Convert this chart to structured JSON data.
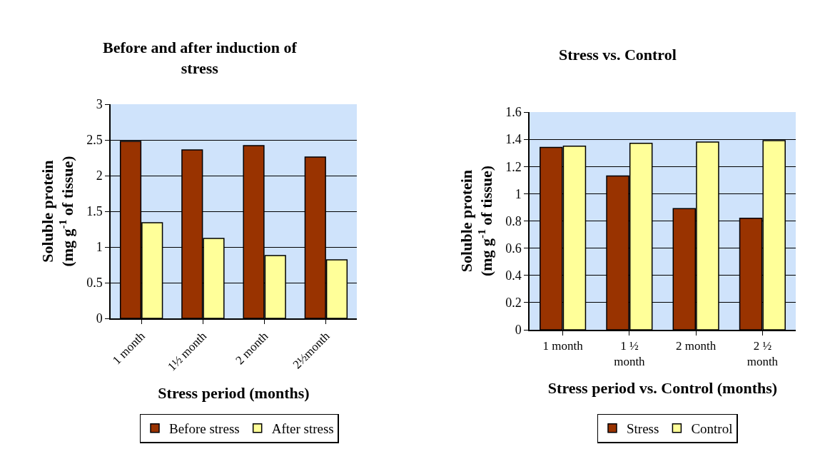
{
  "chart_data": [
    {
      "type": "bar",
      "title": "Before and after induction of\nstress",
      "xlabel": "Stress period (months)",
      "ylabel": "Soluble protein\n(mg g$^{-1}$ of tissue)",
      "categories": [
        "1 month",
        "1½ month",
        "2 month",
        "2½month"
      ],
      "series": [
        {
          "name": "Before stress",
          "color": "#993300",
          "values": [
            2.48,
            2.36,
            2.42,
            2.26
          ]
        },
        {
          "name": "After stress",
          "color": "#ffff99",
          "values": [
            1.34,
            1.12,
            0.88,
            0.82
          ]
        }
      ],
      "ylim": [
        0,
        3
      ],
      "yticks": [
        0,
        0.5,
        1,
        1.5,
        2,
        2.5,
        3
      ],
      "grid": "y",
      "legend": "bottom"
    },
    {
      "type": "bar",
      "title": "Stress vs. Control",
      "xlabel": "Stress period vs. Control (months)",
      "ylabel": "Soluble protein\n(mg g$^{-1}$ of tissue)",
      "categories": [
        "1 month",
        "1 ½ month",
        "2 month",
        "2 ½ month"
      ],
      "series": [
        {
          "name": "Stress",
          "color": "#993300",
          "values": [
            1.34,
            1.13,
            0.89,
            0.82
          ]
        },
        {
          "name": "Control",
          "color": "#ffff99",
          "values": [
            1.35,
            1.37,
            1.38,
            1.39
          ]
        }
      ],
      "ylim": [
        0,
        1.6
      ],
      "yticks": [
        0,
        0.2,
        0.4,
        0.6,
        0.8,
        1,
        1.2,
        1.4,
        1.6
      ],
      "grid": "y",
      "legend": "bottom"
    }
  ]
}
